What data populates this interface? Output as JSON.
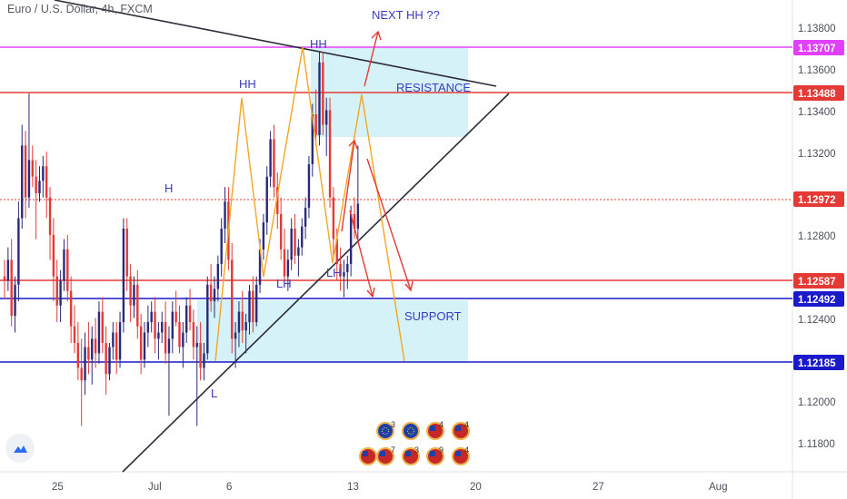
{
  "header": {
    "title": "Euro / U.S. Dollar, 4h, FXCM"
  },
  "colors": {
    "up": "#2a2a7a",
    "down": "#e53935",
    "resistance_line": "#e53935",
    "support_line": "#1a1acc",
    "magenta_line": "#e040fb",
    "zone_fill": "#d4f2f8",
    "trendline": "#2b2b3a",
    "zigzag_orange": "#f5a623",
    "arrow_red": "#e53935",
    "annotation_text": "#3b3bbf"
  },
  "chart_data": {
    "type": "candlestick",
    "title": "Euro / U.S. Dollar, 4h, FXCM",
    "ylim": [
      1.1168,
      1.1395
    ],
    "y_ticks": [
      "1.13800",
      "1.13600",
      "1.13400",
      "1.13200",
      "1.12800",
      "1.12400",
      "1.12000",
      "1.11800"
    ],
    "x_ticks": [
      "25",
      "Jul",
      "6",
      "13",
      "20",
      "27",
      "Aug"
    ],
    "price_tags": [
      {
        "value": 1.13707,
        "label": "1.13707",
        "color": "#e040fb"
      },
      {
        "value": 1.13488,
        "label": "1.13488",
        "color": "#e53935"
      },
      {
        "value": 1.12972,
        "label": "1.12972",
        "color": "#e53935"
      },
      {
        "value": 1.12587,
        "label": "1.12587",
        "color": "#e53935"
      },
      {
        "value": 1.12492,
        "label": "1.12492",
        "color": "#1a1acc"
      },
      {
        "value": 1.12185,
        "label": "1.12185",
        "color": "#1a1acc"
      }
    ],
    "annotations": [
      "HH",
      "HH",
      "H",
      "LH",
      "LH",
      "L",
      "NEXT HH ??",
      "RESISTANCE",
      "SUPPORT"
    ],
    "candles": [
      [
        1.1262,
        1.127,
        1.1251,
        1.126
      ],
      [
        1.126,
        1.1276,
        1.1255,
        1.127
      ],
      [
        1.127,
        1.128,
        1.1238,
        1.1243
      ],
      [
        1.1243,
        1.1262,
        1.1235,
        1.1258
      ],
      [
        1.1258,
        1.1298,
        1.125,
        1.129
      ],
      [
        1.129,
        1.1335,
        1.1285,
        1.1325
      ],
      [
        1.1325,
        1.1332,
        1.129,
        1.13
      ],
      [
        1.13,
        1.135,
        1.1295,
        1.1318
      ],
      [
        1.1318,
        1.1325,
        1.1305,
        1.131
      ],
      [
        1.131,
        1.1318,
        1.128,
        1.1302
      ],
      [
        1.1302,
        1.1315,
        1.1298,
        1.1308
      ],
      [
        1.1308,
        1.132,
        1.13,
        1.1315
      ],
      [
        1.1315,
        1.1322,
        1.129,
        1.13
      ],
      [
        1.13,
        1.1305,
        1.127,
        1.1282
      ],
      [
        1.1282,
        1.129,
        1.125,
        1.1262
      ],
      [
        1.1262,
        1.127,
        1.124,
        1.1248
      ],
      [
        1.1248,
        1.1265,
        1.124,
        1.126
      ],
      [
        1.126,
        1.128,
        1.1255,
        1.1275
      ],
      [
        1.1275,
        1.1282,
        1.125,
        1.1255
      ],
      [
        1.1255,
        1.1262,
        1.123,
        1.1238
      ],
      [
        1.1238,
        1.1248,
        1.1225,
        1.123
      ],
      [
        1.123,
        1.124,
        1.1212,
        1.1218
      ],
      [
        1.1218,
        1.1232,
        1.119,
        1.1212
      ],
      [
        1.1212,
        1.1235,
        1.1205,
        1.1228
      ],
      [
        1.1228,
        1.124,
        1.1215,
        1.1222
      ],
      [
        1.1222,
        1.1238,
        1.121,
        1.1232
      ],
      [
        1.1232,
        1.1242,
        1.1218,
        1.1225
      ],
      [
        1.1225,
        1.125,
        1.122,
        1.1245
      ],
      [
        1.1245,
        1.1252,
        1.1225,
        1.123
      ],
      [
        1.123,
        1.1238,
        1.1205,
        1.1215
      ],
      [
        1.1215,
        1.123,
        1.1212,
        1.1228
      ],
      [
        1.1228,
        1.124,
        1.1222,
        1.1235
      ],
      [
        1.1235,
        1.124,
        1.1215,
        1.1222
      ],
      [
        1.1222,
        1.1245,
        1.1218,
        1.124
      ],
      [
        1.124,
        1.129,
        1.1235,
        1.1285
      ],
      [
        1.1285,
        1.129,
        1.1255,
        1.1262
      ],
      [
        1.1262,
        1.1268,
        1.124,
        1.1248
      ],
      [
        1.1248,
        1.1262,
        1.1242,
        1.1258
      ],
      [
        1.1258,
        1.1265,
        1.1232,
        1.1238
      ],
      [
        1.1238,
        1.1244,
        1.1215,
        1.1222
      ],
      [
        1.1222,
        1.124,
        1.1218,
        1.1235
      ],
      [
        1.1235,
        1.1248,
        1.1228,
        1.124
      ],
      [
        1.124,
        1.125,
        1.1235,
        1.1245
      ],
      [
        1.1245,
        1.1252,
        1.1225,
        1.1232
      ],
      [
        1.1232,
        1.124,
        1.1222,
        1.1235
      ],
      [
        1.1235,
        1.1245,
        1.123,
        1.124
      ],
      [
        1.124,
        1.125,
        1.122,
        1.1225
      ],
      [
        1.1225,
        1.1238,
        1.1195,
        1.1232
      ],
      [
        1.1232,
        1.125,
        1.1225,
        1.1245
      ],
      [
        1.1245,
        1.1255,
        1.1238,
        1.124
      ],
      [
        1.124,
        1.1248,
        1.1225,
        1.1228
      ],
      [
        1.1228,
        1.124,
        1.1218,
        1.1235
      ],
      [
        1.1235,
        1.1252,
        1.123,
        1.1248
      ],
      [
        1.1248,
        1.1256,
        1.1236,
        1.124
      ],
      [
        1.124,
        1.1246,
        1.1222,
        1.1228
      ],
      [
        1.1228,
        1.1238,
        1.119,
        1.123
      ],
      [
        1.123,
        1.124,
        1.1212,
        1.1218
      ],
      [
        1.1218,
        1.123,
        1.1212,
        1.1225
      ],
      [
        1.1225,
        1.1262,
        1.1222,
        1.1258
      ],
      [
        1.1258,
        1.1268,
        1.1245,
        1.125
      ],
      [
        1.125,
        1.1262,
        1.1242,
        1.1256
      ],
      [
        1.1256,
        1.1272,
        1.125,
        1.1268
      ],
      [
        1.1268,
        1.129,
        1.1262,
        1.1285
      ],
      [
        1.1285,
        1.1305,
        1.1278,
        1.1298
      ],
      [
        1.1298,
        1.1305,
        1.1265,
        1.127
      ],
      [
        1.127,
        1.1278,
        1.1225,
        1.1232
      ],
      [
        1.1232,
        1.124,
        1.1218,
        1.1235
      ],
      [
        1.1235,
        1.125,
        1.1228,
        1.1245
      ],
      [
        1.1245,
        1.1255,
        1.123,
        1.1236
      ],
      [
        1.1236,
        1.1244,
        1.1225,
        1.124
      ],
      [
        1.124,
        1.1258,
        1.1234,
        1.1255
      ],
      [
        1.1255,
        1.1262,
        1.1235,
        1.124
      ],
      [
        1.124,
        1.1262,
        1.1238,
        1.1258
      ],
      [
        1.1258,
        1.128,
        1.1254,
        1.1275
      ],
      [
        1.1275,
        1.1292,
        1.127,
        1.1288
      ],
      [
        1.1288,
        1.1315,
        1.1282,
        1.131
      ],
      [
        1.131,
        1.1332,
        1.1305,
        1.1328
      ],
      [
        1.1328,
        1.1335,
        1.13,
        1.1305
      ],
      [
        1.1305,
        1.1312,
        1.1285,
        1.1292
      ],
      [
        1.1292,
        1.13,
        1.127,
        1.1275
      ],
      [
        1.1275,
        1.1285,
        1.1258,
        1.1262
      ],
      [
        1.1262,
        1.1275,
        1.1255,
        1.127
      ],
      [
        1.127,
        1.129,
        1.1265,
        1.1285
      ],
      [
        1.1285,
        1.1292,
        1.1268,
        1.1272
      ],
      [
        1.1272,
        1.128,
        1.1262,
        1.1276
      ],
      [
        1.1276,
        1.129,
        1.1272,
        1.1286
      ],
      [
        1.1286,
        1.13,
        1.128,
        1.1295
      ],
      [
        1.1295,
        1.132,
        1.129,
        1.1316
      ],
      [
        1.1316,
        1.1345,
        1.131,
        1.134
      ],
      [
        1.134,
        1.1352,
        1.1325,
        1.133
      ],
      [
        1.133,
        1.137,
        1.1325,
        1.1365
      ],
      [
        1.1365,
        1.137,
        1.133,
        1.1335
      ],
      [
        1.1335,
        1.1348,
        1.132,
        1.1342
      ],
      [
        1.1342,
        1.1348,
        1.1295,
        1.13
      ],
      [
        1.13,
        1.1305,
        1.1272,
        1.128
      ],
      [
        1.128,
        1.1285,
        1.126,
        1.1268
      ],
      [
        1.1268,
        1.1276,
        1.1255,
        1.1262
      ],
      [
        1.1262,
        1.127,
        1.1252,
        1.1264
      ],
      [
        1.1264,
        1.1272,
        1.1256,
        1.1268
      ],
      [
        1.1268,
        1.1296,
        1.1262,
        1.1292
      ],
      [
        1.1292,
        1.13,
        1.128,
        1.1285
      ],
      [
        1.1285,
        1.1325,
        1.128,
        1.1297
      ]
    ]
  }
}
